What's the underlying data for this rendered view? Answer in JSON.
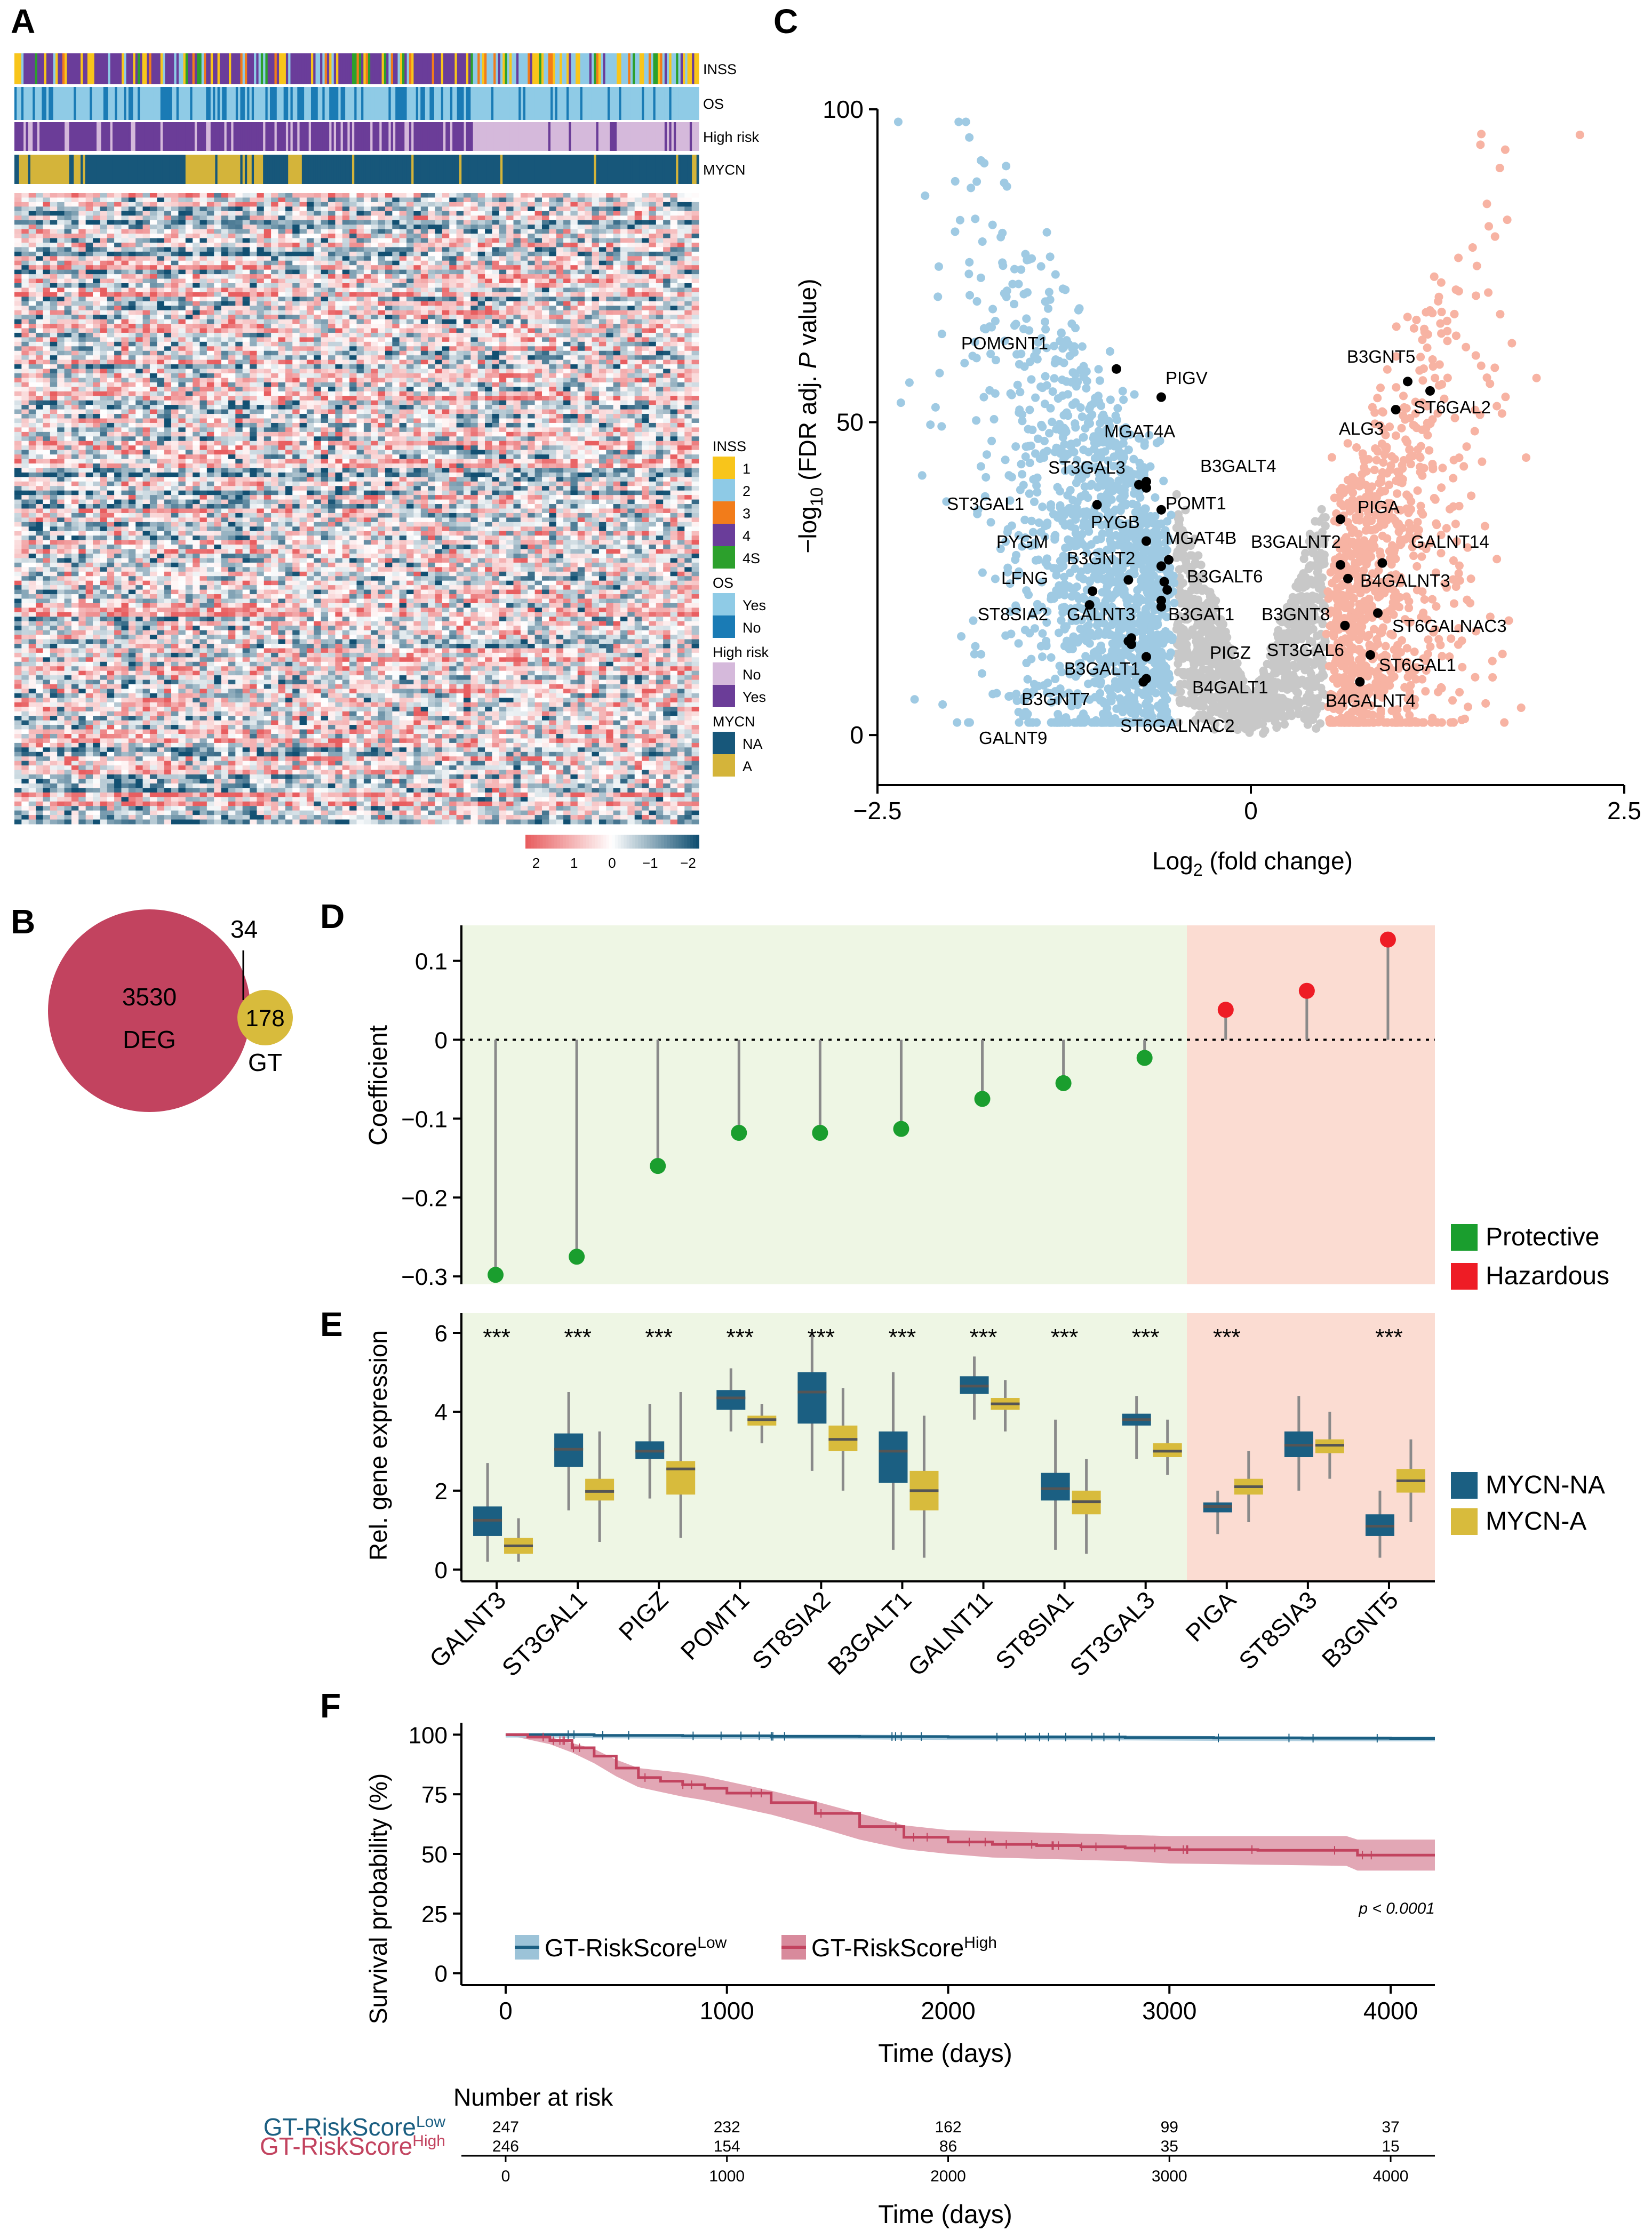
{
  "colors": {
    "blue": "#1b5f82",
    "red": "#c2435f",
    "pale_blue": "#9fcae3",
    "pale_red": "#f7b3a3",
    "grey": "#c8c8c8",
    "green": "#1a9e2e",
    "hazard": "#ee1c25",
    "green_bg": "#eef6e4",
    "red_bg": "#fbdcd2",
    "yellow": "#d8bb3c",
    "inss": [
      "#f8c51b",
      "#8ecae6",
      "#f27c1a",
      "#6a3d9a",
      "#2ca02c"
    ]
  },
  "panels": {
    "a": "A",
    "b": "B",
    "c": "C",
    "d": "D",
    "e": "E",
    "f": "F"
  },
  "chart_data": [
    {
      "id": "A",
      "type": "heatmap",
      "tracks": [
        "INSS",
        "OS",
        "High risk",
        "MYCN"
      ],
      "legends": [
        {
          "title": "INSS",
          "items": [
            "1",
            "2",
            "3",
            "4",
            "4S"
          ]
        },
        {
          "title": "OS",
          "items": [
            "Yes",
            "No"
          ]
        },
        {
          "title": "High risk",
          "items": [
            "No",
            "Yes"
          ]
        },
        {
          "title": "MYCN",
          "items": [
            "NA",
            "A"
          ]
        }
      ],
      "scale_ticks": [
        "2",
        "1",
        "0",
        "−1",
        "−2"
      ]
    },
    {
      "id": "B",
      "type": "venn",
      "sets": [
        {
          "label": "DEG",
          "count": "3530"
        },
        {
          "label": "GT",
          "count": "178"
        }
      ],
      "overlap": "34"
    },
    {
      "id": "C",
      "type": "scatter",
      "xlabel": "Log",
      "xlabel_sub": "2",
      "xlabel_rest": " (fold change)",
      "ylabel_pre": "−log",
      "ylabel_sub": "10",
      "ylabel_rest": " (FDR adj. ",
      "ylabel_italic": "P",
      "ylabel_end": " value)",
      "xlim": [
        -2.5,
        2.5
      ],
      "ylim": [
        -8,
        100
      ],
      "xticks": [
        "−2.5",
        "0",
        "2.5"
      ],
      "yticks": [
        "0",
        "50",
        "100"
      ],
      "labeled_genes": [
        {
          "name": "POMGNT1",
          "x": -0.9,
          "y": 58.5
        },
        {
          "name": "PIGV",
          "x": -0.6,
          "y": 54
        },
        {
          "name": "MGAT4A",
          "x": -0.7,
          "y": 40.5
        },
        {
          "name": "B3GALT4",
          "x": -0.7,
          "y": 39.5
        },
        {
          "name": "ST3GAL3",
          "x": -0.75,
          "y": 40
        },
        {
          "name": "POMT1",
          "x": -0.6,
          "y": 36
        },
        {
          "name": "ST3GAL1",
          "x": -1.03,
          "y": 36.8
        },
        {
          "name": "PYGB",
          "x": -0.7,
          "y": 31
        },
        {
          "name": "MGAT4B",
          "x": -0.55,
          "y": 28
        },
        {
          "name": "PYGM",
          "x": -0.82,
          "y": 24.8
        },
        {
          "name": "B3GNT2",
          "x": -0.6,
          "y": 27
        },
        {
          "name": "LFNG",
          "x": -1.06,
          "y": 23
        },
        {
          "name": "B3GALT6",
          "x": -0.58,
          "y": 24.5
        },
        {
          "name": "B3GNT8",
          "x": -0.56,
          "y": 23.2
        },
        {
          "name": "ST8SIA2",
          "x": -1.08,
          "y": 20.8
        },
        {
          "name": "GALNT3",
          "x": -0.6,
          "y": 21.5
        },
        {
          "name": "B3GAT1",
          "x": -0.6,
          "y": 20.5
        },
        {
          "name": "B3GALT1",
          "x": -0.8,
          "y": 15.5
        },
        {
          "name": "PIGZ",
          "x": -0.7,
          "y": 12.5
        },
        {
          "name": "B3GNT7",
          "x": -0.8,
          "y": 14.5
        },
        {
          "name": "B4GALT1",
          "x": -0.7,
          "y": 9
        },
        {
          "name": "GALNT9",
          "x": -0.82,
          "y": 15
        },
        {
          "name": "ST6GALNAC2",
          "x": -0.72,
          "y": 8.5
        },
        {
          "name": "B3GNT5",
          "x": 1.05,
          "y": 56.5
        },
        {
          "name": "ST6GAL2",
          "x": 1.2,
          "y": 55
        },
        {
          "name": "ALG3",
          "x": 0.97,
          "y": 52
        },
        {
          "name": "PIGA",
          "x": 0.6,
          "y": 34.5
        },
        {
          "name": "B3GALNT2",
          "x": 0.6,
          "y": 27.2
        },
        {
          "name": "GALNT14",
          "x": 0.88,
          "y": 27.5
        },
        {
          "name": "B4GALNT3",
          "x": 0.65,
          "y": 25
        },
        {
          "name": "ST6GALNAC3",
          "x": 0.85,
          "y": 19.5
        },
        {
          "name": "ST3GAL6",
          "x": 0.63,
          "y": 17.5
        },
        {
          "name": "ST6GAL1",
          "x": 0.8,
          "y": 12.8
        },
        {
          "name": "B4GALNT4",
          "x": 0.73,
          "y": 8.5
        }
      ]
    },
    {
      "id": "D",
      "type": "lollipop",
      "ylabel": "Coefficient",
      "ylim": [
        -0.31,
        0.145
      ],
      "yticks": [
        {
          "v": 0.1,
          "t": "0.1"
        },
        {
          "v": 0,
          "t": "0"
        },
        {
          "v": -0.1,
          "t": "−0.1"
        },
        {
          "v": -0.2,
          "t": "−0.2"
        },
        {
          "v": -0.3,
          "t": "−0.3"
        }
      ],
      "values": [
        -0.298,
        -0.275,
        -0.16,
        -0.118,
        -0.118,
        -0.113,
        -0.075,
        -0.055,
        -0.023,
        0.038,
        0.062,
        0.127
      ],
      "groups": [
        "Protective",
        "Protective",
        "Protective",
        "Protective",
        "Protective",
        "Protective",
        "Protective",
        "Protective",
        "Protective",
        "Hazardous",
        "Hazardous",
        "Hazardous"
      ],
      "legend": [
        "Protective",
        "Hazardous"
      ]
    },
    {
      "id": "E",
      "type": "box",
      "ylabel": "Rel. gene expression",
      "ylim": [
        -0.3,
        6.5
      ],
      "yticks": [
        {
          "v": 0,
          "t": "0"
        },
        {
          "v": 2,
          "t": "2"
        },
        {
          "v": 4,
          "t": "4"
        },
        {
          "v": 6,
          "t": "6"
        }
      ],
      "categories": [
        "GALNT3",
        "ST3GAL1",
        "PIGZ",
        "POMT1",
        "ST8SIA2",
        "B3GALT1",
        "GALNT11",
        "ST8SIA1",
        "ST3GAL3",
        "PIGA",
        "ST8SIA3",
        "B3GNT5"
      ],
      "significance": [
        "***",
        "***",
        "***",
        "***",
        "***",
        "***",
        "***",
        "***",
        "***",
        "***",
        "",
        "***"
      ],
      "series": [
        {
          "name": "MYCN-NA",
          "stats": [
            [
              0.2,
              0.85,
              1.25,
              1.6,
              2.7
            ],
            [
              1.5,
              2.6,
              3.05,
              3.45,
              4.5
            ],
            [
              1.8,
              2.8,
              3.0,
              3.25,
              4.2
            ],
            [
              3.5,
              4.05,
              4.35,
              4.55,
              5.1
            ],
            [
              2.5,
              3.7,
              4.5,
              5.0,
              6.0
            ],
            [
              0.5,
              2.2,
              3.0,
              3.5,
              5.0
            ],
            [
              3.8,
              4.45,
              4.65,
              4.9,
              5.4
            ],
            [
              0.5,
              1.75,
              2.05,
              2.45,
              3.8
            ],
            [
              2.8,
              3.65,
              3.8,
              3.95,
              4.4
            ],
            [
              0.9,
              1.45,
              1.6,
              1.7,
              2.0
            ],
            [
              2.0,
              2.85,
              3.15,
              3.5,
              4.4
            ],
            [
              0.3,
              0.85,
              1.1,
              1.4,
              2.0
            ]
          ]
        },
        {
          "name": "MYCN-A",
          "stats": [
            [
              0.2,
              0.4,
              0.6,
              0.8,
              1.3
            ],
            [
              0.7,
              1.75,
              1.98,
              2.3,
              3.5
            ],
            [
              0.8,
              1.9,
              2.55,
              2.75,
              4.5
            ],
            [
              3.2,
              3.65,
              3.8,
              3.9,
              4.2
            ],
            [
              2.0,
              3.0,
              3.3,
              3.65,
              4.6
            ],
            [
              0.3,
              1.5,
              2.0,
              2.5,
              3.9
            ],
            [
              3.5,
              4.05,
              4.2,
              4.35,
              4.8
            ],
            [
              0.4,
              1.4,
              1.72,
              2.0,
              2.8
            ],
            [
              2.4,
              2.85,
              3.0,
              3.2,
              3.8
            ],
            [
              1.2,
              1.9,
              2.1,
              2.3,
              3.0
            ],
            [
              2.3,
              2.95,
              3.15,
              3.3,
              4.0
            ],
            [
              1.2,
              1.95,
              2.25,
              2.55,
              3.3
            ]
          ]
        }
      ]
    },
    {
      "id": "F",
      "type": "line",
      "xlabel": "Time (days)",
      "ylabel": "Survival probability (%)",
      "xlim": [
        -200,
        4200
      ],
      "ylim": [
        -5,
        105
      ],
      "xticks": [
        "0",
        "1000",
        "2000",
        "3000",
        "4000"
      ],
      "yticks": [
        "0",
        "25",
        "50",
        "75",
        "100"
      ],
      "pvalue": "p < 0.0001",
      "series": [
        {
          "name": "GT-RiskScore",
          "sup": "Low",
          "x": [
            0,
            200,
            400,
            800,
            1200,
            1600,
            2000,
            2400,
            2800,
            3200,
            3600,
            4000,
            4200
          ],
          "y": [
            100,
            100,
            99.7,
            99.5,
            99.3,
            99.2,
            99,
            99,
            98.8,
            98.6,
            98.5,
            98.4,
            98.4
          ]
        },
        {
          "name": "GT-RiskScore",
          "sup": "High",
          "x": [
            0,
            100,
            200,
            300,
            400,
            500,
            600,
            700,
            800,
            900,
            1000,
            1200,
            1400,
            1600,
            1800,
            2000,
            2200,
            2400,
            2600,
            2800,
            3000,
            3400,
            3800,
            3850,
            4200
          ],
          "y": [
            100,
            99,
            97.5,
            94.5,
            91,
            86,
            82,
            80.5,
            79,
            77.5,
            75.5,
            71.5,
            67,
            61.5,
            57,
            55,
            54,
            53.5,
            53,
            52.5,
            51.8,
            51.5,
            51.5,
            49.5,
            49.5
          ],
          "lo": [
            100,
            98,
            96,
            92.5,
            88,
            82.5,
            78,
            76,
            74,
            72.5,
            70.5,
            66.5,
            61.5,
            56,
            52,
            50,
            48.5,
            48,
            47.5,
            47,
            46,
            45.5,
            45,
            43,
            43
          ],
          "hi": [
            100,
            100,
            99,
            96.5,
            94,
            89.5,
            86,
            85,
            84,
            82.5,
            80.5,
            76.5,
            72,
            67,
            62,
            60,
            59.5,
            59,
            58.5,
            58,
            57.5,
            57.5,
            57.5,
            56,
            56
          ]
        }
      ],
      "risk_table": {
        "title": "Number at risk",
        "times": [
          "0",
          "1000",
          "2000",
          "3000",
          "4000"
        ],
        "rows": [
          {
            "name": "GT-RiskScore",
            "sup": "Low",
            "counts": [
              "247",
              "232",
              "162",
              "99",
              "37"
            ]
          },
          {
            "name": "GT-RiskScore",
            "sup": "High",
            "counts": [
              "246",
              "154",
              "86",
              "35",
              "15"
            ]
          }
        ],
        "xlabel": "Time (days)"
      }
    }
  ]
}
